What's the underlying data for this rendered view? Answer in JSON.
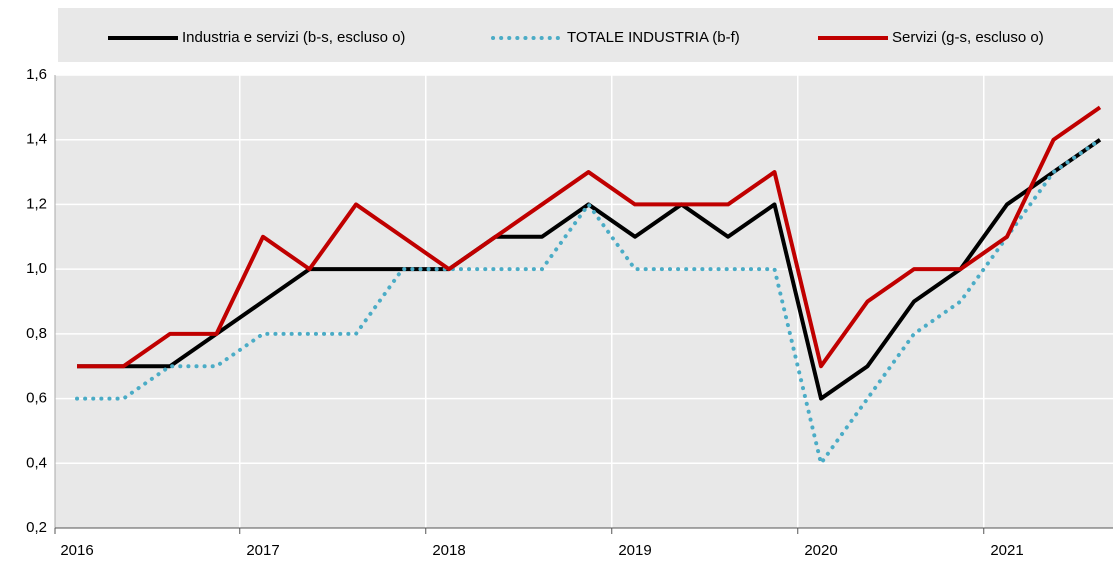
{
  "chart_data": {
    "type": "line",
    "categories": [
      "2016",
      null,
      null,
      null,
      "2017",
      null,
      null,
      null,
      "2018",
      null,
      null,
      null,
      "2019",
      null,
      null,
      null,
      "2020",
      null,
      null,
      null,
      "2021",
      null,
      null
    ],
    "series": [
      {
        "name": "Industria e servizi (b-s, escluso o)",
        "color": "#000000",
        "style": "solid",
        "values": [
          0.7,
          0.7,
          0.7,
          0.8,
          0.9,
          1.0,
          1.0,
          1.0,
          1.0,
          1.1,
          1.1,
          1.2,
          1.1,
          1.2,
          1.1,
          1.2,
          0.6,
          0.7,
          0.9,
          1.0,
          1.2,
          1.3,
          1.4
        ]
      },
      {
        "name": "TOTALE INDUSTRIA (b-f)",
        "color": "#4bacc6",
        "style": "dotted",
        "values": [
          0.6,
          0.6,
          0.7,
          0.7,
          0.8,
          0.8,
          0.8,
          1.0,
          1.0,
          1.0,
          1.0,
          1.2,
          1.0,
          1.0,
          1.0,
          1.0,
          0.4,
          0.6,
          0.8,
          0.9,
          1.1,
          1.3,
          1.4
        ]
      },
      {
        "name": "Servizi  (g-s, escluso o)",
        "color": "#c00000",
        "style": "solid",
        "values": [
          0.7,
          0.7,
          0.8,
          0.8,
          1.1,
          1.0,
          1.2,
          1.1,
          1.0,
          1.1,
          1.2,
          1.3,
          1.2,
          1.2,
          1.2,
          1.3,
          0.7,
          0.9,
          1.0,
          1.0,
          1.1,
          1.4,
          1.5
        ]
      }
    ],
    "ylim": [
      0.2,
      1.6
    ],
    "yticks": [
      {
        "value": 0.2,
        "label": "0,2"
      },
      {
        "value": 0.4,
        "label": "0,4"
      },
      {
        "value": 0.6,
        "label": "0,6"
      },
      {
        "value": 0.8,
        "label": "0,8"
      },
      {
        "value": 1.0,
        "label": "1,0"
      },
      {
        "value": 1.2,
        "label": "1,2"
      },
      {
        "value": 1.4,
        "label": "1,4"
      },
      {
        "value": 1.6,
        "label": "1,6"
      }
    ],
    "grid": true,
    "legend": "top"
  }
}
